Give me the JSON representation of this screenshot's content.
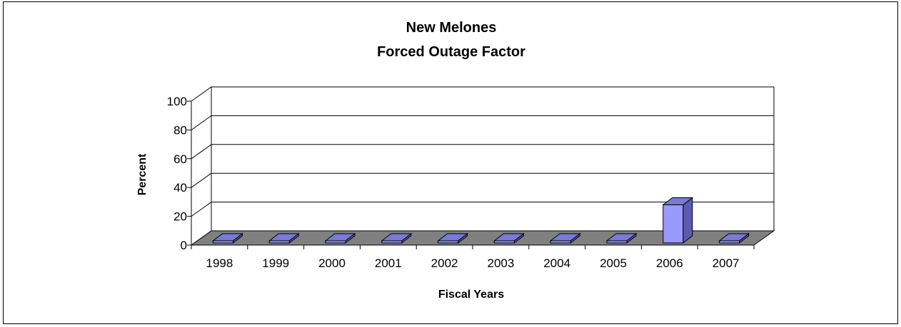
{
  "chart_data": {
    "type": "bar",
    "title": [
      "New Melones",
      "Forced Outage Factor"
    ],
    "xlabel": "Fiscal Years",
    "ylabel": "Percent",
    "categories": [
      "1998",
      "1999",
      "2000",
      "2001",
      "2002",
      "2003",
      "2004",
      "2005",
      "2006",
      "2007"
    ],
    "values": [
      1.5,
      0.4,
      0.4,
      0.1,
      0.1,
      0.1,
      0.4,
      0.4,
      26.5,
      0.4
    ],
    "ylim": [
      0,
      100
    ],
    "yticks": [
      "0",
      "20",
      "40",
      "60",
      "80",
      "100"
    ],
    "grid": true,
    "legend": "none",
    "style": "3d-column",
    "colors": {
      "bar_front": "#9999ff",
      "bar_top": "#7a7ad6",
      "bar_side": "#5b5bb0",
      "floor": "#808080",
      "gridline": "#000000"
    }
  }
}
